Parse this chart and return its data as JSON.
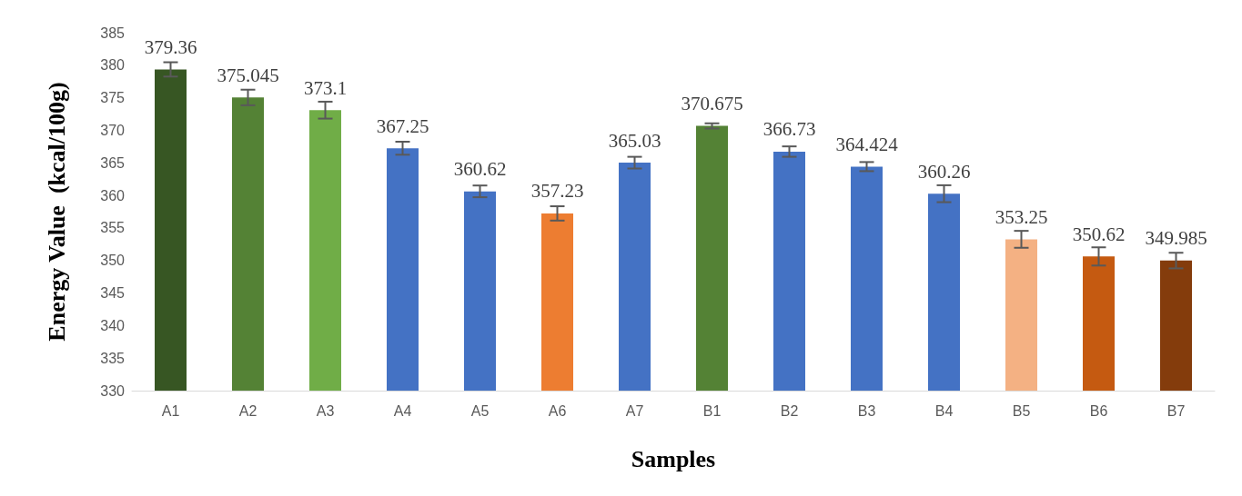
{
  "chart_data": {
    "type": "bar",
    "xlabel": "Samples",
    "ylabel": "Energy Value  (kcal/100g)",
    "categories": [
      "A1",
      "A2",
      "A3",
      "A4",
      "A5",
      "A6",
      "A7",
      "B1",
      "B2",
      "B3",
      "B4",
      "B5",
      "B6",
      "B7"
    ],
    "values": [
      379.36,
      375.045,
      373.1,
      367.25,
      360.62,
      357.23,
      365.03,
      370.675,
      366.73,
      364.424,
      360.26,
      353.25,
      350.62,
      349.985
    ],
    "errors": [
      1.1,
      1.2,
      1.3,
      1.0,
      0.9,
      1.1,
      0.9,
      0.4,
      0.8,
      0.7,
      1.3,
      1.3,
      1.4,
      1.2
    ],
    "colors": [
      "#375623",
      "#548235",
      "#70ad47",
      "#4472c4",
      "#4472c4",
      "#ed7d31",
      "#4472c4",
      "#548235",
      "#4472c4",
      "#4472c4",
      "#4472c4",
      "#f4b183",
      "#c55a11",
      "#843c0c"
    ],
    "ylim": [
      330,
      385
    ],
    "yticks": [
      330,
      335,
      340,
      345,
      350,
      355,
      360,
      365,
      370,
      375,
      380,
      385
    ],
    "grid": false,
    "data_labels": true
  }
}
